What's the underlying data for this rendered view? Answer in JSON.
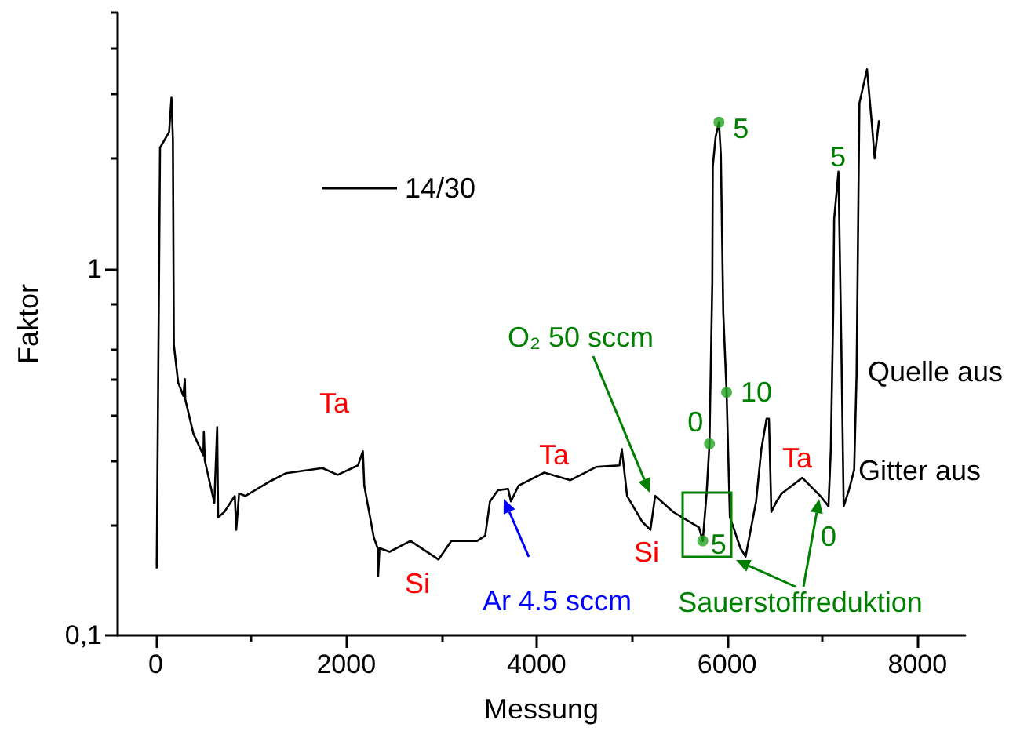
{
  "chart_data": {
    "type": "line",
    "xlabel": "Messung",
    "ylabel": "Faktor",
    "log": "y",
    "grid": false,
    "legend": "top left",
    "marker": "none",
    "xlim": [
      -400,
      8500
    ],
    "xticks": [
      0,
      {
        "value": 1000,
        "label": null
      },
      2000,
      {
        "value": 3000,
        "label": null
      },
      4000,
      {
        "value": 5000,
        "label": null
      },
      6000,
      {
        "value": 7000,
        "label": null
      },
      8000
    ],
    "ylim": [
      0.1,
      5
    ],
    "yticks": [
      {
        "value": 0.1,
        "label": "0,1"
      },
      {
        "value": 0.2,
        "label": null
      },
      {
        "value": 0.3,
        "label": null
      },
      {
        "value": 0.4,
        "label": null
      },
      {
        "value": 0.5,
        "label": null
      },
      {
        "value": 0.6,
        "label": null
      },
      {
        "value": 0.8,
        "label": null
      },
      1,
      {
        "value": 2,
        "label": null
      },
      {
        "value": 3,
        "label": null
      },
      {
        "value": 4,
        "label": null
      },
      {
        "value": 5,
        "label": null
      }
    ],
    "series": [
      {
        "name": "14/30",
        "color": "#000000",
        "line_style": "solid",
        "x": [
          10,
          45,
          140,
          165,
          180,
          190,
          235,
          290,
          305,
          310,
          395,
          500,
          505,
          515,
          615,
          645,
          655,
          720,
          830,
          845,
          875,
          940,
          1210,
          1370,
          1750,
          1910,
          2125,
          2175,
          2190,
          2290,
          2330,
          2335,
          2350,
          2455,
          2675,
          2970,
          3105,
          3375,
          3460,
          3510,
          3595,
          3700,
          3730,
          3810,
          4080,
          4355,
          4625,
          4870,
          4895,
          4950,
          5110,
          5195,
          5245,
          5435,
          5705,
          5745,
          5785,
          5815,
          5845,
          5850,
          5880,
          5915,
          5935,
          5960,
          5995,
          6030,
          6140,
          6195,
          6305,
          6360,
          6415,
          6440,
          6465,
          6520,
          6575,
          6790,
          6980,
          7065,
          7090,
          7115,
          7125,
          7170,
          7200,
          7225,
          7280,
          7335,
          7360,
          7390,
          7470,
          7525,
          7550,
          7595
        ],
        "values": [
          0.153,
          2.14,
          2.36,
          2.93,
          2.25,
          0.62,
          0.49,
          0.45,
          0.5,
          0.44,
          0.355,
          0.31,
          0.36,
          0.3,
          0.23,
          0.37,
          0.21,
          0.217,
          0.24,
          0.194,
          0.244,
          0.24,
          0.264,
          0.277,
          0.286,
          0.274,
          0.291,
          0.318,
          0.256,
          0.185,
          0.173,
          0.145,
          0.173,
          0.169,
          0.181,
          0.161,
          0.181,
          0.181,
          0.187,
          0.232,
          0.249,
          0.251,
          0.232,
          0.256,
          0.278,
          0.265,
          0.288,
          0.291,
          0.322,
          0.24,
          0.204,
          0.194,
          0.24,
          0.217,
          0.197,
          0.181,
          0.244,
          0.333,
          0.92,
          1.9,
          2.29,
          2.51,
          2.04,
          0.76,
          0.46,
          0.21,
          0.173,
          0.164,
          0.232,
          0.322,
          0.39,
          0.39,
          0.217,
          0.232,
          0.244,
          0.269,
          0.24,
          0.225,
          0.322,
          0.76,
          1.37,
          1.84,
          0.62,
          0.225,
          0.249,
          0.283,
          0.51,
          2.83,
          3.5,
          2.41,
          2.0,
          2.53
        ]
      },
      {
        "type": "scatter",
        "color": "#1fa31f",
        "marker": "circle",
        "x": [
          5745,
          5815,
          5915,
          5995
        ],
        "values": [
          0.181,
          0.333,
          2.51,
          0.46
        ]
      }
    ],
    "annotations": [
      "Ta",
      "Si",
      "Ta",
      "Si",
      "Ta",
      "Ar 4.5 sccm",
      "O₂ 50 sccm",
      "Sauerstoffreduktion",
      "Quelle aus",
      "Gitter aus",
      "5",
      "0",
      {
        "text": "5",
        "x": 5745,
        "y": 0.181
      },
      {
        "text": "0",
        "x": 5815,
        "y": 0.333
      },
      {
        "text": "5",
        "x": 5915,
        "y": 2.51
      },
      {
        "text": "10",
        "x": 5995,
        "y": 0.46
      }
    ]
  }
}
